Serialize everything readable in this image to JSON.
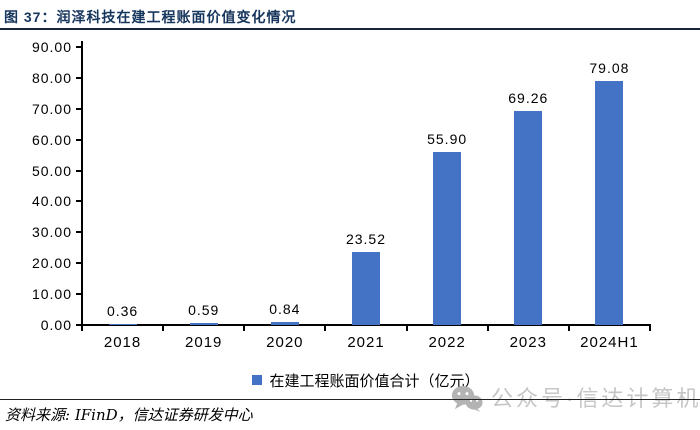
{
  "figure": {
    "title": "图 37：润泽科技在建工程账面价值变化情况",
    "source_note": "资料来源: IFinD，信达证券研发中心",
    "watermark": {
      "icon": "wechat-icon",
      "text": "公众号·信达计算机"
    }
  },
  "chart_data": {
    "type": "bar",
    "categories": [
      "2018",
      "2019",
      "2020",
      "2021",
      "2022",
      "2023",
      "2024H1"
    ],
    "values": [
      0.36,
      0.59,
      0.84,
      23.52,
      55.9,
      69.26,
      79.08
    ],
    "data_labels": [
      "0.36",
      "0.59",
      "0.84",
      "23.52",
      "55.90",
      "69.26",
      "79.08"
    ],
    "title": "",
    "xlabel": "",
    "ylabel": "",
    "ylim": [
      0,
      90
    ],
    "ytick_step": 10,
    "ytick_labels": [
      "0.00",
      "10.00",
      "20.00",
      "30.00",
      "40.00",
      "50.00",
      "60.00",
      "70.00",
      "80.00",
      "90.00"
    ],
    "grid": false,
    "legend_position": "bottom",
    "legend": [
      {
        "label": "在建工程账面价值合计（亿元）",
        "color": "#4472C4"
      }
    ]
  },
  "colors": {
    "accent": "#4472C4",
    "title": "#17365D",
    "rule": "#16243D",
    "axis": "#000000",
    "text": "#000000",
    "divider": "#222222",
    "watermark": "#C6C6C6",
    "watermark_icon": "#B3B3B3"
  }
}
